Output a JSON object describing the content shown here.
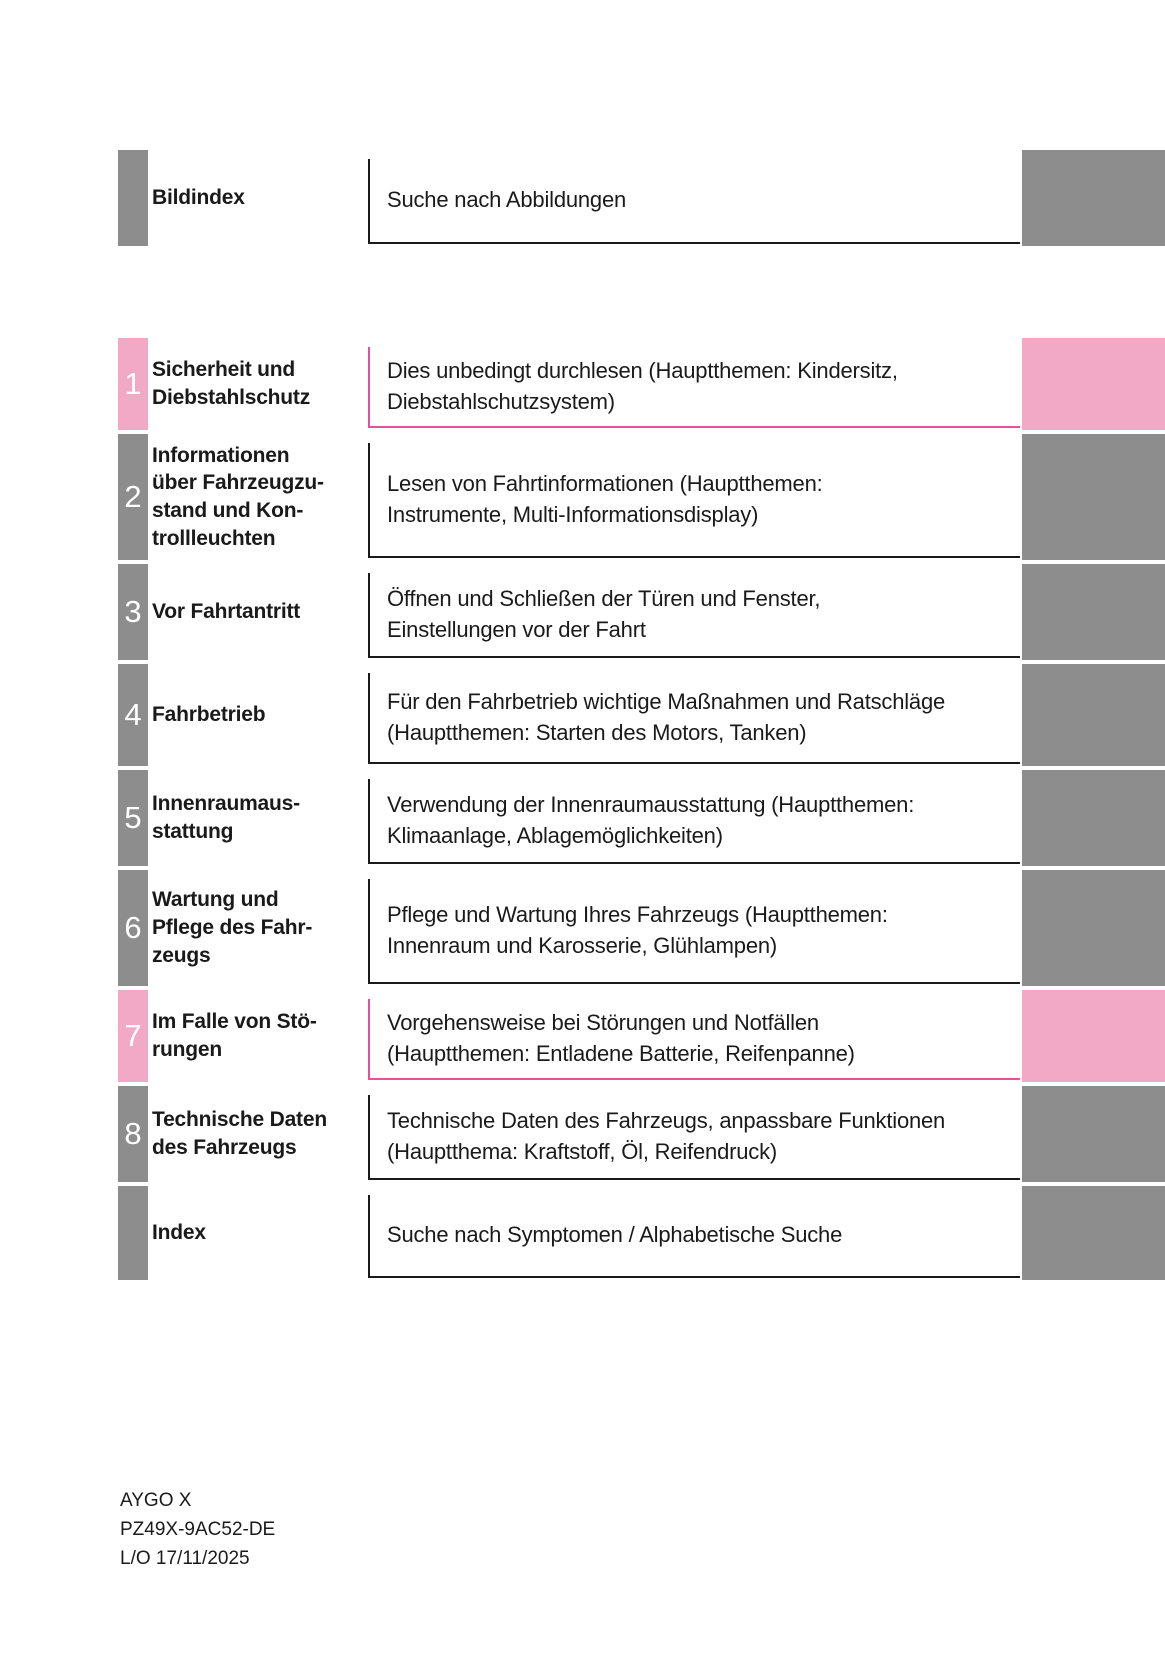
{
  "document_title": "Owner's manual table of contents (German)",
  "colors": {
    "gray_accent": "#8d8d8d",
    "pink_accent": "#f1a9c6",
    "pink_border": "#e7509a",
    "dark_border": "#1a1a1a"
  },
  "rows": [
    {
      "number": "",
      "title": "Bildindex",
      "description": "Suche nach Abbildungen",
      "accent": "gray"
    },
    {
      "number": "1",
      "title": "Sicherheit und\nDiebstahlschutz",
      "description": "Dies unbedingt durchlesen (Hauptthemen: Kindersitz,\nDiebstahlschutzsystem)",
      "accent": "pink"
    },
    {
      "number": "2",
      "title": "Informationen\nüber Fahrzeugzu-\nstand und Kon-\ntrollleuchten",
      "description": "Lesen von Fahrtinformationen (Hauptthemen:\nInstrumente, Multi-Informationsdisplay)",
      "accent": "gray"
    },
    {
      "number": "3",
      "title": "Vor Fahrtantritt",
      "description": "Öffnen und Schließen der Türen und Fenster,\nEinstellungen vor der Fahrt",
      "accent": "gray"
    },
    {
      "number": "4",
      "title": "Fahrbetrieb",
      "description": "Für den Fahrbetrieb wichtige Maßnahmen und Ratschläge\n(Hauptthemen: Starten des Motors, Tanken)",
      "accent": "gray"
    },
    {
      "number": "5",
      "title": "Innenraumaus-\nstattung",
      "description": "Verwendung der Innenraumausstattung (Hauptthemen:\nKlimaanlage, Ablagemöglichkeiten)",
      "accent": "gray"
    },
    {
      "number": "6",
      "title": "Wartung und\nPflege des Fahr-\nzeugs",
      "description": "Pflege und Wartung Ihres Fahrzeugs (Hauptthemen:\nInnenraum und Karosserie, Glühlampen)",
      "accent": "gray"
    },
    {
      "number": "7",
      "title": "Im Falle von Stö-\nrungen",
      "description": "Vorgehensweise bei Störungen und Notfällen\n(Hauptthemen: Entladene Batterie, Reifenpanne)",
      "accent": "pink"
    },
    {
      "number": "8",
      "title": "Technische Daten\ndes Fahrzeugs",
      "description": "Technische Daten des Fahrzeugs, anpassbare Funktionen\n(Hauptthema: Kraftstoff, Öl, Reifendruck)",
      "accent": "gray"
    },
    {
      "number": "",
      "title": "Index",
      "description": "Suche nach Symptomen / Alphabetische Suche",
      "accent": "gray"
    }
  ],
  "footer": {
    "line1": "AYGO X",
    "line2": "PZ49X-9AC52-DE",
    "line3": "L/O 17/11/2025"
  }
}
